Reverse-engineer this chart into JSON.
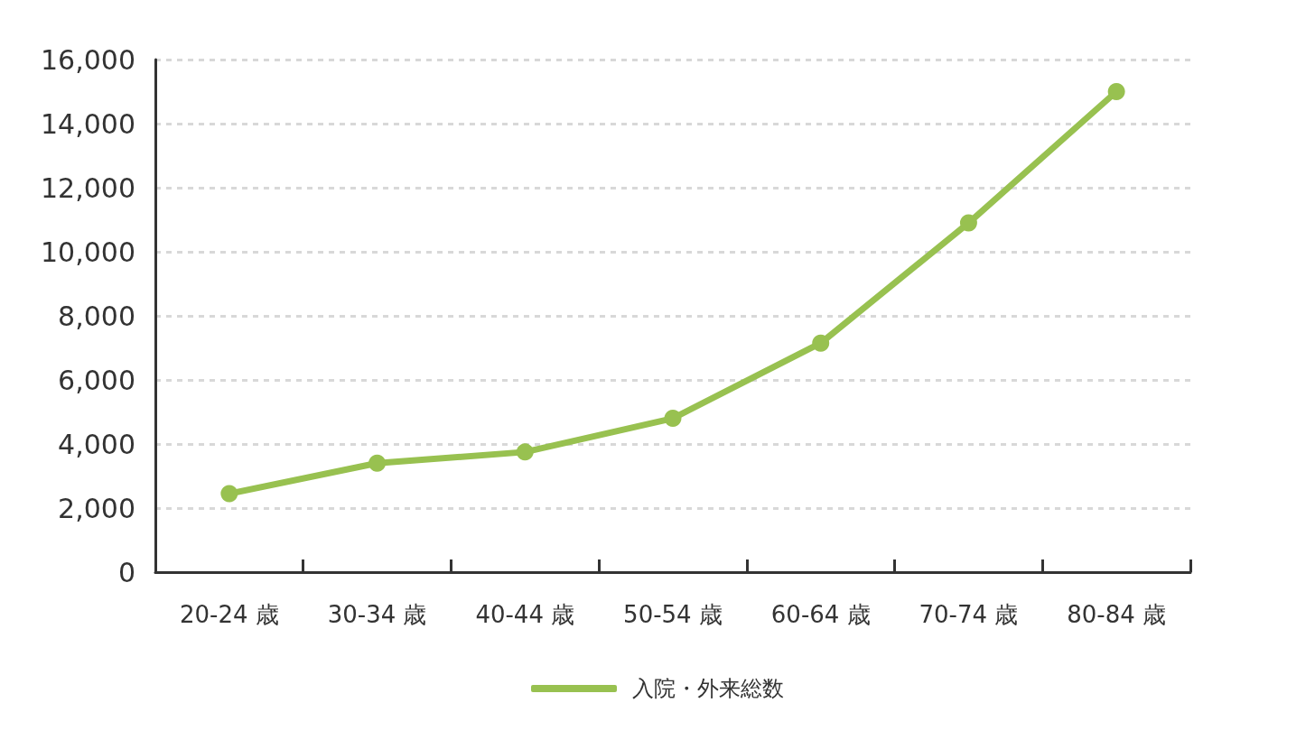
{
  "chart_data": {
    "type": "line",
    "categories": [
      "20-24 歳",
      "30-34 歳",
      "40-44 歳",
      "50-54 歳",
      "60-64 歳",
      "70-74 歳",
      "80-84 歳"
    ],
    "series": [
      {
        "name": "入院・外来総数",
        "color": "#98c150",
        "values": [
          2450,
          3400,
          3750,
          4800,
          7150,
          10900,
          15000
        ]
      }
    ],
    "ylim": [
      0,
      16000
    ],
    "yticks": [
      {
        "value": 0,
        "label": "0"
      },
      {
        "value": 2000,
        "label": "2,000"
      },
      {
        "value": 4000,
        "label": "4,000"
      },
      {
        "value": 6000,
        "label": "6,000"
      },
      {
        "value": 8000,
        "label": "8,000"
      },
      {
        "value": 10000,
        "label": "10,000"
      },
      {
        "value": 12000,
        "label": "12,000"
      },
      {
        "value": 14000,
        "label": "14,000"
      },
      {
        "value": 16000,
        "label": "16,000"
      }
    ],
    "grid": "y",
    "legend": "bottom",
    "marker": "circle",
    "line_style": "solid"
  }
}
